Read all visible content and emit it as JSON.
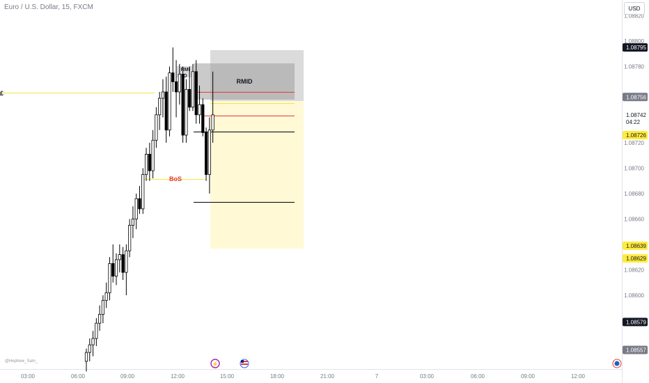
{
  "header": {
    "title": "Euro / U.S. Dollar, 15, FXCM",
    "currency_button": "USD"
  },
  "watermark": "@Hephew_Sam_",
  "colors": {
    "bg": "#ffffff",
    "candle_up": "#ffffff",
    "candle_down": "#000000",
    "wick": "#000000",
    "yellow": "#f5e342",
    "red": "#e53935",
    "zone_gray": "#c3c3c3",
    "zone_dark": "#9e9e9e",
    "zone_yellow": "#fff9d6",
    "label_dark": "#131722",
    "label_yellow": "#ffeb3b",
    "label_gray": "#787b86"
  },
  "chart_data": {
    "type": "candlestick",
    "symbol": "EURUSD",
    "timeframe": "15",
    "ylim": [
      1.0855,
      1.0883
    ],
    "y_ticks": [
      "1.08820",
      "1.08800",
      "1.08780",
      "1.08720",
      "1.08700",
      "1.08680",
      "1.08660",
      "1.08620",
      "1.08600"
    ],
    "x_ticks": [
      "03:00",
      "06:00",
      "09:00",
      "12:00",
      "15:00",
      "18:00",
      "21:00",
      "7",
      "03:00",
      "06:00",
      "09:00",
      "12:00"
    ],
    "price_labels": [
      {
        "value": "1.08795",
        "style": "dark"
      },
      {
        "value": "1.08756",
        "style": "gray"
      },
      {
        "value": "1.08742",
        "style": "plain",
        "extra": "04:22"
      },
      {
        "value": "1.08726",
        "style": "yellow"
      },
      {
        "value": "1.08639",
        "style": "yellow"
      },
      {
        "value": "1.08629",
        "style": "yellow"
      },
      {
        "value": "1.08579",
        "style": "dark"
      },
      {
        "value": "1.08557",
        "style": "gray"
      }
    ],
    "candles": [
      {
        "o": 1.08548,
        "h": 1.08558,
        "l": 1.0854,
        "c": 1.08555
      },
      {
        "o": 1.08555,
        "h": 1.08566,
        "l": 1.08548,
        "c": 1.08561
      },
      {
        "o": 1.08561,
        "h": 1.08572,
        "l": 1.08552,
        "c": 1.08566
      },
      {
        "o": 1.08566,
        "h": 1.08582,
        "l": 1.0856,
        "c": 1.08578
      },
      {
        "o": 1.08578,
        "h": 1.08592,
        "l": 1.08572,
        "c": 1.08585
      },
      {
        "o": 1.08585,
        "h": 1.086,
        "l": 1.08578,
        "c": 1.08596
      },
      {
        "o": 1.08596,
        "h": 1.0861,
        "l": 1.0859,
        "c": 1.08602
      },
      {
        "o": 1.08602,
        "h": 1.0863,
        "l": 1.08596,
        "c": 1.08625
      },
      {
        "o": 1.08625,
        "h": 1.0864,
        "l": 1.0861,
        "c": 1.08615
      },
      {
        "o": 1.08615,
        "h": 1.08633,
        "l": 1.08608,
        "c": 1.08628
      },
      {
        "o": 1.08628,
        "h": 1.0864,
        "l": 1.08618,
        "c": 1.08632
      },
      {
        "o": 1.08632,
        "h": 1.08638,
        "l": 1.08612,
        "c": 1.08618
      },
      {
        "o": 1.08618,
        "h": 1.0864,
        "l": 1.086,
        "c": 1.08635
      },
      {
        "o": 1.08635,
        "h": 1.0866,
        "l": 1.0863,
        "c": 1.08655
      },
      {
        "o": 1.08655,
        "h": 1.0867,
        "l": 1.08645,
        "c": 1.0866
      },
      {
        "o": 1.0866,
        "h": 1.0868,
        "l": 1.08652,
        "c": 1.08676
      },
      {
        "o": 1.08676,
        "h": 1.08686,
        "l": 1.08664,
        "c": 1.08668
      },
      {
        "o": 1.08668,
        "h": 1.087,
        "l": 1.08664,
        "c": 1.08695
      },
      {
        "o": 1.08695,
        "h": 1.08716,
        "l": 1.0869,
        "c": 1.08711
      },
      {
        "o": 1.08711,
        "h": 1.0872,
        "l": 1.0869,
        "c": 1.08698
      },
      {
        "o": 1.08698,
        "h": 1.0873,
        "l": 1.08692,
        "c": 1.08722
      },
      {
        "o": 1.08722,
        "h": 1.08748,
        "l": 1.08716,
        "c": 1.08742
      },
      {
        "o": 1.08742,
        "h": 1.0876,
        "l": 1.0873,
        "c": 1.08755
      },
      {
        "o": 1.08755,
        "h": 1.0877,
        "l": 1.0874,
        "c": 1.0876
      },
      {
        "o": 1.0876,
        "h": 1.08772,
        "l": 1.0872,
        "c": 1.0873
      },
      {
        "o": 1.0873,
        "h": 1.0878,
        "l": 1.08725,
        "c": 1.08775
      },
      {
        "o": 1.08775,
        "h": 1.08795,
        "l": 1.0876,
        "c": 1.08768
      },
      {
        "o": 1.08768,
        "h": 1.08785,
        "l": 1.0874,
        "c": 1.0876
      },
      {
        "o": 1.0876,
        "h": 1.08782,
        "l": 1.0875,
        "c": 1.08774
      },
      {
        "o": 1.08774,
        "h": 1.0878,
        "l": 1.0872,
        "c": 1.08726
      },
      {
        "o": 1.08726,
        "h": 1.0877,
        "l": 1.0872,
        "c": 1.08762
      },
      {
        "o": 1.08762,
        "h": 1.0878,
        "l": 1.08745,
        "c": 1.08748
      },
      {
        "o": 1.08748,
        "h": 1.08782,
        "l": 1.08745,
        "c": 1.08776
      },
      {
        "o": 1.08776,
        "h": 1.08785,
        "l": 1.08735,
        "c": 1.08742
      },
      {
        "o": 1.08742,
        "h": 1.08765,
        "l": 1.08735,
        "c": 1.0875
      },
      {
        "o": 1.0875,
        "h": 1.08755,
        "l": 1.08725,
        "c": 1.08728
      },
      {
        "o": 1.08728,
        "h": 1.08732,
        "l": 1.0869,
        "c": 1.08695
      },
      {
        "o": 1.08695,
        "h": 1.0874,
        "l": 1.0868,
        "c": 1.0873
      },
      {
        "o": 1.0873,
        "h": 1.08776,
        "l": 1.0872,
        "c": 1.08742
      }
    ],
    "annotations": [
      {
        "text": "RMID",
        "kind": "zone_label"
      },
      {
        "text": "RMI D",
        "kind": "zone_label_small"
      },
      {
        "text": "BoS",
        "kind": "break_of_structure",
        "price": 1.08693
      },
      {
        "text": "£",
        "kind": "left_marker"
      }
    ]
  },
  "events": [
    {
      "name": "flash-event-icon",
      "symbol": "⚡"
    },
    {
      "name": "us-flag-icon",
      "symbol": "US"
    },
    {
      "name": "globe-icon",
      "symbol": "◉"
    }
  ]
}
